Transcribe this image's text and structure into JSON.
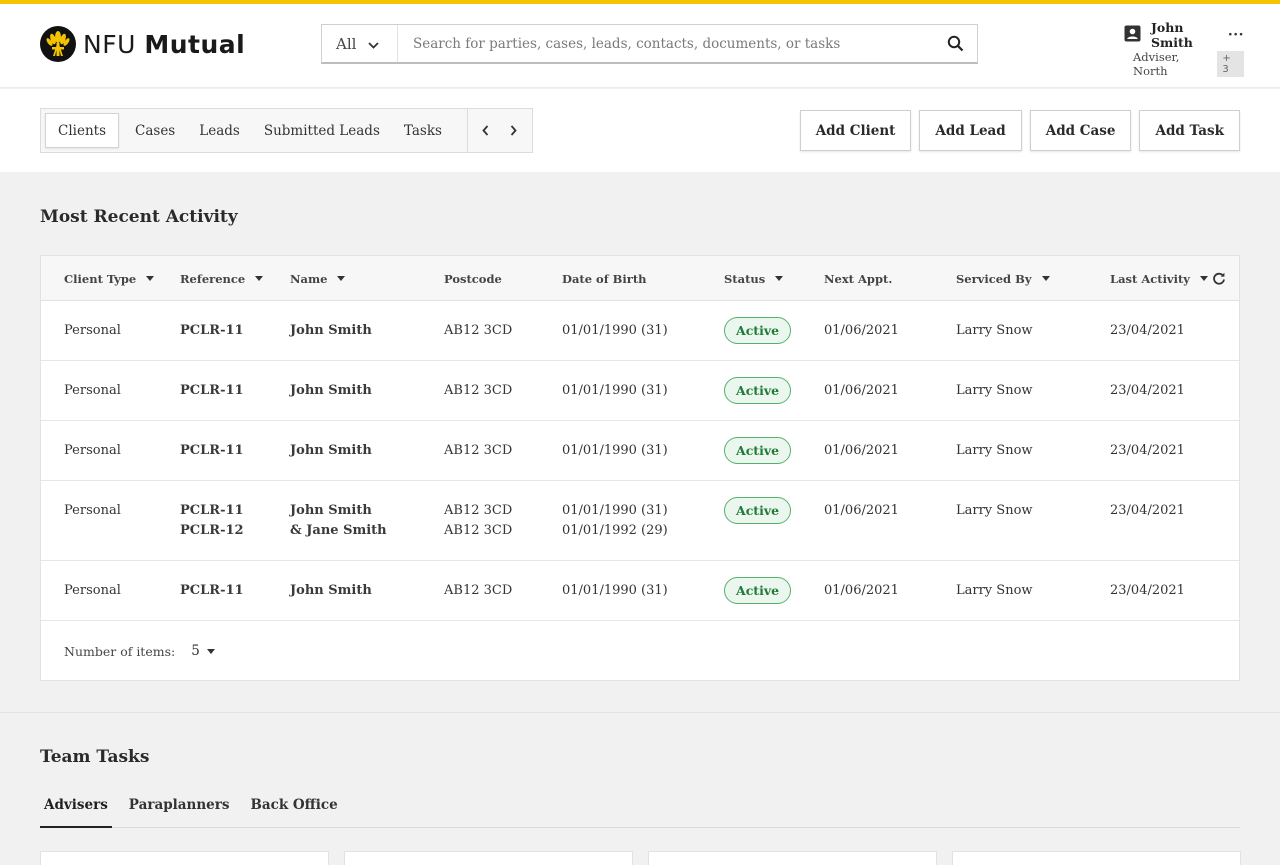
{
  "brand": {
    "light": "NFU ",
    "bold": "Mutual"
  },
  "search": {
    "scope": "All",
    "placeholder": "Search for parties, cases, leads, contacts, documents, or tasks"
  },
  "user": {
    "name": "John Smith",
    "role": "Adviser, North",
    "extra_count": "+ 3"
  },
  "nav_tabs": [
    "Clients",
    "Cases",
    "Leads",
    "Submitted Leads",
    "Tasks"
  ],
  "actions": {
    "add_client": "Add Client",
    "add_lead": "Add Lead",
    "add_case": "Add Case",
    "add_task": "Add Task"
  },
  "recent": {
    "title": "Most Recent Activity",
    "columns": {
      "client_type": "Client Type",
      "reference": "Reference",
      "name": "Name",
      "postcode": "Postcode",
      "dob": "Date of Birth",
      "status": "Status",
      "next_appt": "Next Appt.",
      "serviced_by": "Serviced By",
      "last_activity": "Last Activity"
    },
    "rows": [
      {
        "type": "Personal",
        "ref": [
          "PCLR-11"
        ],
        "name": [
          "John Smith"
        ],
        "postcode": [
          "AB12 3CD"
        ],
        "dob": [
          "01/01/1990 (31)"
        ],
        "status": "Active",
        "next": "01/06/2021",
        "serviced": "Larry Snow",
        "last": "23/04/2021"
      },
      {
        "type": "Personal",
        "ref": [
          "PCLR-11"
        ],
        "name": [
          "John Smith"
        ],
        "postcode": [
          "AB12 3CD"
        ],
        "dob": [
          "01/01/1990 (31)"
        ],
        "status": "Active",
        "next": "01/06/2021",
        "serviced": "Larry Snow",
        "last": "23/04/2021"
      },
      {
        "type": "Personal",
        "ref": [
          "PCLR-11"
        ],
        "name": [
          "John Smith"
        ],
        "postcode": [
          "AB12 3CD"
        ],
        "dob": [
          "01/01/1990 (31)"
        ],
        "status": "Active",
        "next": "01/06/2021",
        "serviced": "Larry Snow",
        "last": "23/04/2021"
      },
      {
        "type": "Personal",
        "ref": [
          "PCLR-11",
          "PCLR-12"
        ],
        "name": [
          "John Smith",
          "& Jane Smith"
        ],
        "postcode": [
          "AB12 3CD",
          "AB12 3CD"
        ],
        "dob": [
          "01/01/1990 (31)",
          "01/01/1992 (29)"
        ],
        "status": "Active",
        "next": "01/06/2021",
        "serviced": "Larry Snow",
        "last": "23/04/2021"
      },
      {
        "type": "Personal",
        "ref": [
          "PCLR-11"
        ],
        "name": [
          "John Smith"
        ],
        "postcode": [
          "AB12 3CD"
        ],
        "dob": [
          "01/01/1990 (31)"
        ],
        "status": "Active",
        "next": "01/06/2021",
        "serviced": "Larry Snow",
        "last": "23/04/2021"
      }
    ],
    "items_label": "Number of items:",
    "items_value": "5"
  },
  "team": {
    "title": "Team Tasks",
    "tabs": [
      "Advisers",
      "Paraplanners",
      "Back Office"
    ]
  },
  "colors": {
    "accent": "#f5c400",
    "status_active": "#1f7a37"
  }
}
